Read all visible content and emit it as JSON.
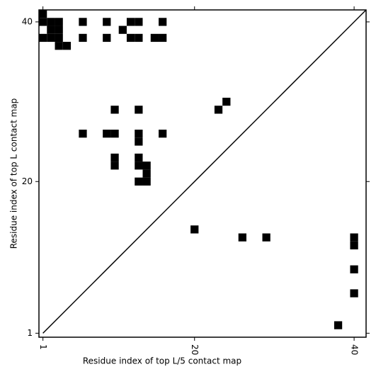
{
  "chart_data": {
    "type": "scatter",
    "marker": "square",
    "color": "#000000",
    "x_label": "Residue index of top L/5 contact map",
    "y_label": "Residue index of top L contact map",
    "x": [
      1,
      1,
      2,
      3,
      6,
      9,
      12,
      13,
      16,
      2,
      3,
      11,
      1,
      2,
      3,
      6,
      9,
      12,
      13,
      15,
      16,
      3,
      4,
      10,
      13,
      23,
      24,
      6,
      9,
      10,
      13,
      16,
      13,
      10,
      13,
      10,
      13,
      14,
      14,
      13,
      14,
      20,
      26,
      29,
      40,
      40,
      40,
      40,
      38
    ],
    "values": [
      41,
      40,
      40,
      40,
      40,
      40,
      40,
      40,
      40,
      39,
      39,
      39,
      38,
      38,
      38,
      38,
      38,
      38,
      38,
      38,
      38,
      37,
      37,
      29,
      29,
      29,
      30,
      26,
      26,
      26,
      26,
      26,
      25,
      23,
      23,
      22,
      22,
      22,
      21,
      20,
      20,
      14,
      13,
      13,
      13,
      12,
      9,
      6,
      2
    ],
    "xlim": [
      0.5,
      41.5
    ],
    "ylim": [
      0.5,
      41.5
    ],
    "xticks": [
      1,
      20,
      40
    ],
    "yticks": [
      1,
      20,
      40
    ],
    "diagonal": true
  }
}
